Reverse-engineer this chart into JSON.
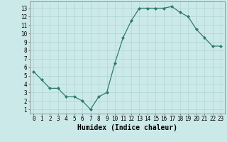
{
  "x": [
    0,
    1,
    2,
    3,
    4,
    5,
    6,
    7,
    8,
    9,
    10,
    11,
    12,
    13,
    14,
    15,
    16,
    17,
    18,
    19,
    20,
    21,
    22,
    23
  ],
  "y": [
    5.5,
    4.5,
    3.5,
    3.5,
    2.5,
    2.5,
    2.0,
    1.0,
    2.5,
    3.0,
    6.5,
    9.5,
    11.5,
    13.0,
    13.0,
    13.0,
    13.0,
    13.2,
    12.5,
    12.0,
    10.5,
    9.5,
    8.5,
    8.5
  ],
  "xlabel": "Humidex (Indice chaleur)",
  "ylim": [
    0.5,
    13.8
  ],
  "xlim": [
    -0.5,
    23.5
  ],
  "yticks": [
    1,
    2,
    3,
    4,
    5,
    6,
    7,
    8,
    9,
    10,
    11,
    12,
    13
  ],
  "xticks": [
    0,
    1,
    2,
    3,
    4,
    5,
    6,
    7,
    8,
    9,
    10,
    11,
    12,
    13,
    14,
    15,
    16,
    17,
    18,
    19,
    20,
    21,
    22,
    23
  ],
  "line_color": "#2e7b6e",
  "marker_color": "#2e7b6e",
  "bg_color": "#cce9e9",
  "grid_color": "#aed4d4",
  "tick_label_fontsize": 5.5,
  "xlabel_fontsize": 7.0
}
